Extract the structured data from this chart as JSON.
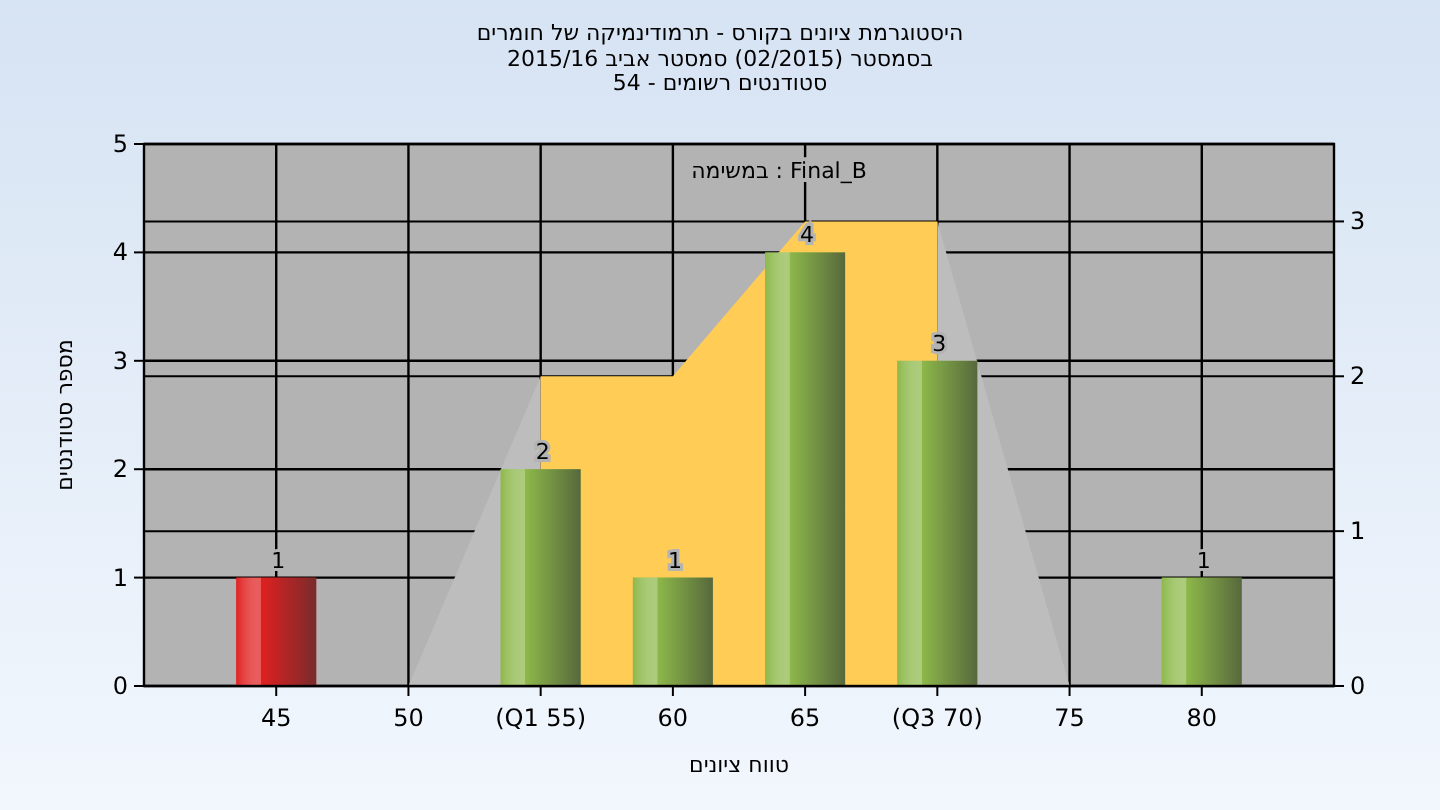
{
  "chart_data": {
    "type": "bar",
    "title": "היסטוגרמת ציונים בקורס - תרמודינמיקה של חומרים",
    "subtitle": "בסמסטר (02/2015) סמסטר אביב 2015/16\nסטודנטים רשומים - 54",
    "xlabel": "טווח ציונים",
    "ylabel": "מספר סטודנטים",
    "annotations": [
      "במשימה : Final_B"
    ],
    "xlim": [
      40,
      85
    ],
    "xticks": [
      45,
      50,
      {
        "value": 55,
        "label": "(Q1 55)"
      },
      60,
      65,
      {
        "value": 70,
        "label": "(Q3 70)"
      },
      75,
      80
    ],
    "ylim": [
      0,
      5
    ],
    "yticks": [
      0,
      1,
      2,
      3,
      4,
      5
    ],
    "y2lim": [
      0,
      3.5
    ],
    "y2ticks": [
      0,
      1,
      2,
      3
    ],
    "grid": true,
    "series": [
      {
        "type": "area",
        "axis": "y2",
        "color": "#bdbdbd",
        "x": [
          50,
          55
        ],
        "values": [
          0,
          2
        ]
      },
      {
        "type": "area",
        "axis": "y2",
        "color": "#ffcc55",
        "x": [
          55,
          60,
          65,
          70
        ],
        "values": [
          2,
          2,
          3,
          3
        ]
      },
      {
        "type": "area",
        "axis": "y2",
        "color": "#bdbdbd",
        "x": [
          70,
          75
        ],
        "values": [
          3,
          0
        ]
      },
      {
        "x": [
          45,
          55,
          60,
          65,
          70,
          80
        ],
        "values": [
          1,
          2,
          1,
          4,
          3,
          1
        ],
        "colors": [
          "#e02020",
          "#8db84a",
          "#8db84a",
          "#8db84a",
          "#8db84a",
          "#8db84a"
        ],
        "value_labels": [
          "1",
          "2",
          "1",
          "4",
          "3",
          "1"
        ]
      }
    ]
  }
}
